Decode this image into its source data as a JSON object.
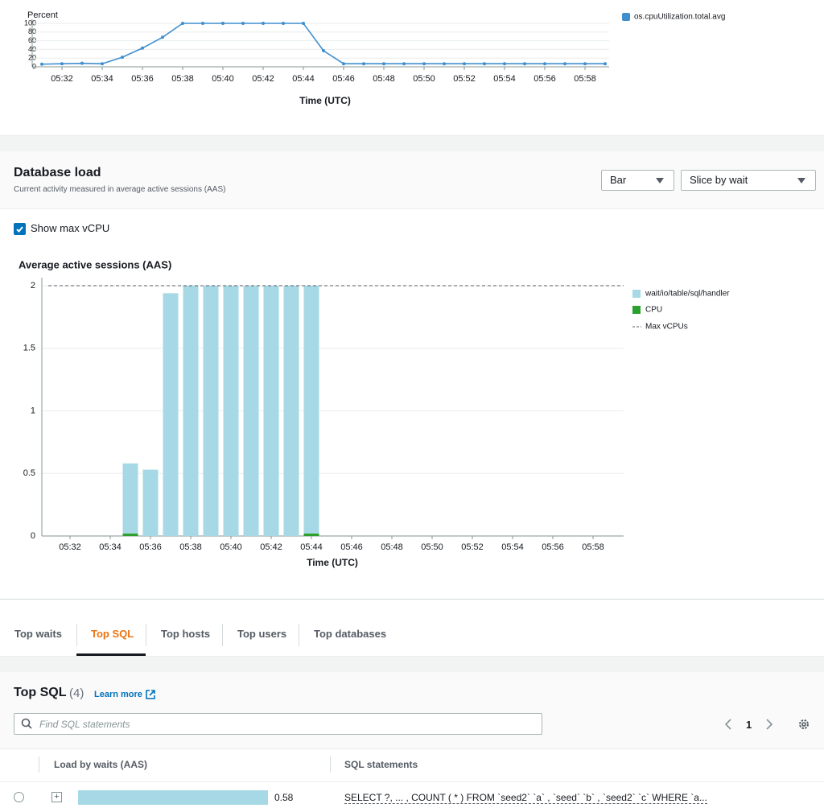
{
  "chart_data": [
    {
      "type": "line",
      "y_label": "Percent",
      "x_label": "Time (UTC)",
      "categories": [
        null,
        "05:32",
        null,
        "05:34",
        null,
        "05:36",
        null,
        "05:38",
        null,
        "05:40",
        null,
        "05:42",
        null,
        "05:44",
        null,
        "05:46",
        null,
        "05:48",
        null,
        "05:50",
        null,
        "05:52",
        null,
        "05:54",
        null,
        "05:56",
        null,
        "05:58",
        null
      ],
      "series": [
        {
          "name": "os.cpuUtilization.total.avg",
          "color": "#3f8fcf",
          "values": [
            6,
            7,
            8,
            7,
            22,
            43,
            68,
            100,
            100,
            100,
            100,
            100,
            100,
            100,
            37,
            7,
            7,
            7,
            7,
            7,
            7,
            7,
            7,
            7,
            7,
            7,
            7,
            7,
            7
          ]
        }
      ],
      "ylim": [
        0,
        100
      ],
      "yticks": [
        0,
        20,
        40,
        60,
        80,
        100
      ],
      "grid": true,
      "legend": "right"
    },
    {
      "type": "bar",
      "stacked": true,
      "title": "Average active sessions (AAS)",
      "x_label": "Time (UTC)",
      "categories": [
        null,
        "05:32",
        null,
        "05:34",
        null,
        "05:36",
        null,
        "05:38",
        null,
        "05:40",
        null,
        "05:42",
        null,
        "05:44",
        null,
        "05:46",
        null,
        "05:48",
        null,
        "05:50",
        null,
        "05:52",
        null,
        "05:54",
        null,
        "05:56",
        null,
        "05:58",
        null
      ],
      "series": [
        {
          "name": "CPU",
          "color": "#2ca02c",
          "values": [
            null,
            null,
            null,
            null,
            0.02,
            null,
            null,
            null,
            null,
            null,
            null,
            null,
            null,
            0.02,
            null,
            null,
            null,
            null,
            null,
            null,
            null,
            null,
            null,
            null,
            null,
            null,
            null,
            null,
            null
          ]
        },
        {
          "name": "wait/io/table/sql/handler",
          "color": "#a6d9e5",
          "values": [
            null,
            null,
            null,
            null,
            0.56,
            0.53,
            1.94,
            2,
            2,
            2,
            2,
            2,
            2,
            1.98,
            null,
            null,
            null,
            null,
            null,
            null,
            null,
            null,
            null,
            null,
            null,
            null,
            null,
            null,
            null
          ]
        }
      ],
      "max_vcpu": 2,
      "max_vcpu_label": "Max vCPUs",
      "ylim": [
        0,
        2
      ],
      "yticks": [
        0,
        0.5,
        1,
        1.5,
        2
      ],
      "grid": true,
      "legend": "right"
    }
  ],
  "database_load": {
    "title": "Database load",
    "subtitle": "Current activity measured in average active sessions (AAS)",
    "view": "Bar",
    "slice": "Slice by wait",
    "show_max_vcpu_label": "Show max vCPU",
    "show_max_vcpu": true
  },
  "tabs": {
    "items": [
      "Top waits",
      "Top SQL",
      "Top hosts",
      "Top users",
      "Top databases"
    ],
    "active": 1
  },
  "top_sql": {
    "title": "Top SQL",
    "count": "(4)",
    "learn_more": "Learn more",
    "search_placeholder": "Find SQL statements",
    "page": 1,
    "columns": [
      "Load by waits (AAS)",
      "SQL statements"
    ],
    "rows": [
      {
        "load": 0.58,
        "sql": "SELECT ?, ... , COUNT ( * ) FROM `seed2` `a` , `seed` `b` , `seed2` `c` WHERE `a..."
      }
    ]
  }
}
